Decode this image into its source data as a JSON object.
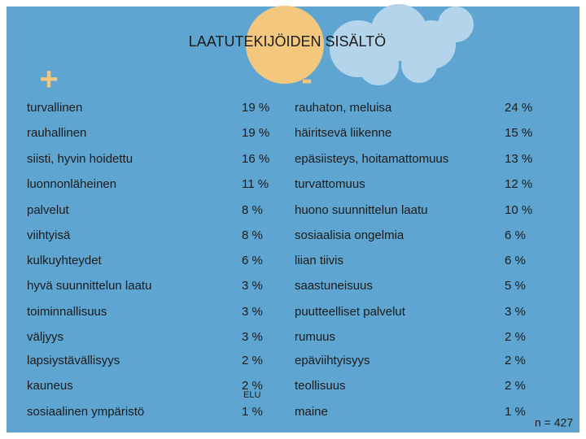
{
  "header": {
    "title": "LAATUTEKIJÖIDEN SISÄLTÖ",
    "plus": "+",
    "minus": "-"
  },
  "table": {
    "rows": [
      [
        "turvallinen",
        "19 %",
        "rauhaton, meluisa",
        "24 %"
      ],
      [
        "rauhallinen",
        "19 %",
        "häiritsevä liikenne",
        "15 %"
      ],
      [
        "siisti, hyvin hoidettu",
        "16 %",
        "epäsiisteys, hoitamattomuus",
        "13 %"
      ],
      [
        "luonnonläheinen",
        "11 %",
        "turvattomuus",
        "12 %"
      ],
      [
        "palvelut",
        "8 %",
        "huono suunnittelun laatu",
        "10 %"
      ],
      [
        "viihtyisä",
        "8 %",
        "sosiaalisia ongelmia",
        "6 %"
      ],
      [
        "kulkuyhteydet",
        "6 %",
        "liian tiivis",
        "6 %"
      ],
      [
        "hyvä suunnittelun laatu",
        "3 %",
        "saastuneisuus",
        "5 %"
      ],
      [
        "toiminnallisuus",
        "3 %",
        "puutteelliset palvelut",
        "3 %"
      ],
      [
        "väljyys",
        "3 %",
        "rumuus",
        "2 %"
      ],
      [
        "lapsiystävällisyys",
        "2 %",
        "epäviihtyisyys",
        "2 %"
      ],
      [
        "kauneus",
        "2 %",
        "teollisuus",
        "2 %"
      ],
      [
        "sosiaalinen ympäristö",
        "1 %",
        "maine",
        "1 %"
      ]
    ]
  },
  "stray_label": "ELU",
  "footer": {
    "note": "n = 427"
  }
}
